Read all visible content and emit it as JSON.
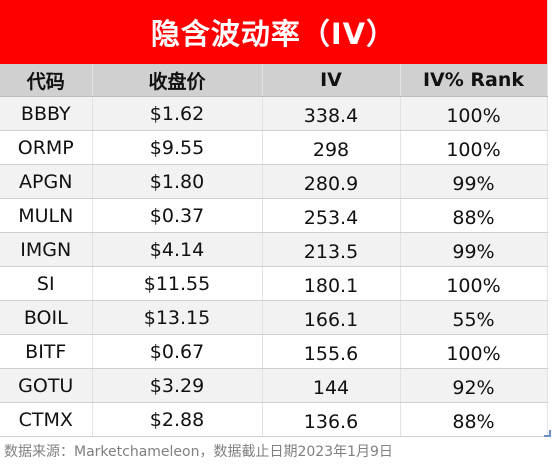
{
  "title": "隐含波动率（IV）",
  "columns": [
    "代码",
    "收盘价",
    "IV",
    "IV% Rank"
  ],
  "rows": [
    [
      "BBBY",
      "$1.62",
      "338.4",
      "100%"
    ],
    [
      "ORMP",
      "$9.55",
      "298",
      "100%"
    ],
    [
      "APGN",
      "$1.80",
      "280.9",
      "99%"
    ],
    [
      "MULN",
      "$0.37",
      "253.4",
      "88%"
    ],
    [
      "IMGN",
      "$4.14",
      "213.5",
      "99%"
    ],
    [
      "SI",
      "$11.55",
      "180.1",
      "100%"
    ],
    [
      "BOIL",
      "$13.15",
      "166.1",
      "55%"
    ],
    [
      "BITF",
      "$0.67",
      "155.6",
      "100%"
    ],
    [
      "GOTU",
      "$3.29",
      "144",
      "92%"
    ],
    [
      "CTMX",
      "$2.88",
      "136.6",
      "88%"
    ]
  ],
  "source": "数据来源：Marketchameleon，数据截止日期2023年1月9日",
  "colors": {
    "title_background": "#ff0000",
    "header_background": "#d0d0d0",
    "stripe_background": "#f2f2f2"
  }
}
